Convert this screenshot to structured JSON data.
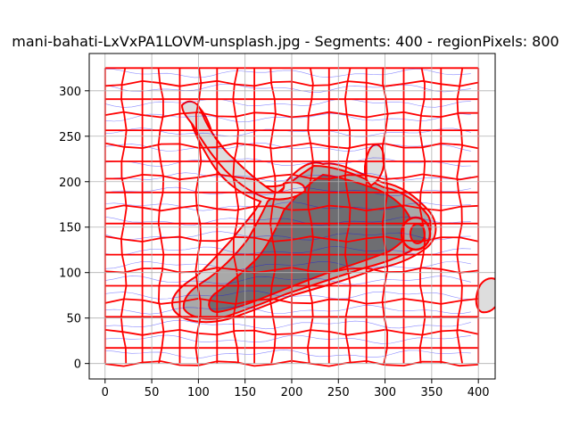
{
  "chart_data": {
    "type": "image",
    "title": "mani-bahati-LxVxPA1LOVM-unsplash.jpg - Segments: 400 - regionPixels: 800",
    "xlabel": "",
    "ylabel": "",
    "xlim": [
      -17,
      418
    ],
    "ylim": [
      341,
      -17
    ],
    "x_ticks": [
      0,
      50,
      100,
      150,
      200,
      250,
      300,
      350,
      400
    ],
    "y_ticks": [
      0,
      50,
      100,
      150,
      200,
      250,
      300
    ],
    "grid": true,
    "image_extent": {
      "x": [
        0,
        400
      ],
      "y": [
        0,
        325
      ]
    },
    "colors": {
      "segment_boundary": "#ff0000",
      "flow_lines": "#0000ff",
      "grid": "#b0b0b0",
      "shape_light": "#dddddd",
      "shape_mid": "#a9a9a9",
      "shape_dark": "#6e6e72"
    }
  }
}
